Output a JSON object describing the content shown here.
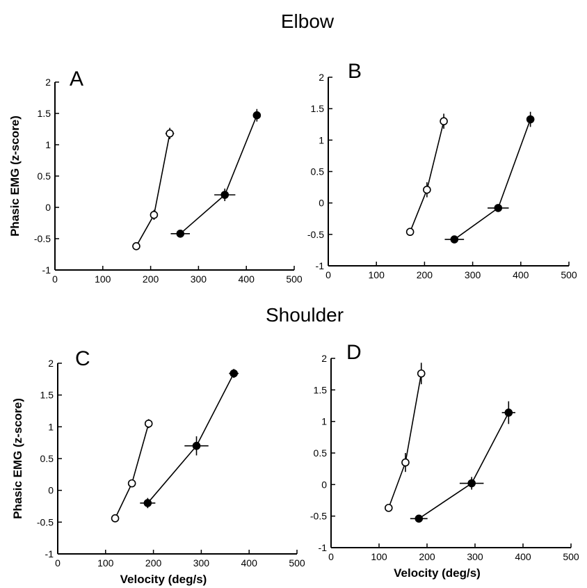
{
  "headings": {
    "top": "Elbow",
    "bottom": "Shoulder"
  },
  "axis_labels": {
    "ylabel": "Phasic EMG (z-score)",
    "xlabel": "Velocity (deg/s)"
  },
  "colors": {
    "filled": "#000000",
    "open": "#ffffff",
    "ink": "#000000"
  },
  "chart_data": [
    {
      "panel": "A",
      "type": "line",
      "xlim": [
        0,
        500
      ],
      "ylim": [
        -1,
        2
      ],
      "xticks": [
        0,
        100,
        200,
        300,
        400,
        500
      ],
      "yticks": [
        -1,
        -0.5,
        0,
        0.5,
        1,
        1.5,
        2
      ],
      "ytick_labels": [
        "-1",
        "-0.5",
        "0",
        "0.5",
        "1",
        "1.5",
        "2"
      ],
      "show_ylabel": true,
      "show_xlabel": false,
      "series": [
        {
          "marker": "open",
          "points": [
            {
              "x": 170,
              "y": -0.62,
              "xerr": 8,
              "yerr": 0.06
            },
            {
              "x": 207,
              "y": -0.12,
              "xerr": 6,
              "yerr": 0.08
            },
            {
              "x": 240,
              "y": 1.18,
              "xerr": 9,
              "yerr": 0.09
            }
          ]
        },
        {
          "marker": "filled",
          "points": [
            {
              "x": 262,
              "y": -0.42,
              "xerr": 20,
              "yerr": 0.05
            },
            {
              "x": 355,
              "y": 0.2,
              "xerr": 22,
              "yerr": 0.1
            },
            {
              "x": 422,
              "y": 1.47,
              "xerr": 8,
              "yerr": 0.1
            }
          ]
        }
      ]
    },
    {
      "panel": "B",
      "type": "line",
      "xlim": [
        0,
        500
      ],
      "ylim": [
        -1,
        2
      ],
      "xticks": [
        0,
        100,
        200,
        300,
        400,
        500
      ],
      "yticks": [
        -1,
        -0.5,
        0,
        0.5,
        1,
        1.5,
        2
      ],
      "ytick_labels": [
        "-1",
        "-0.5",
        "0",
        "0.5",
        "1",
        "1.5",
        "2"
      ],
      "show_ylabel": false,
      "show_xlabel": false,
      "series": [
        {
          "marker": "open",
          "points": [
            {
              "x": 170,
              "y": -0.46,
              "xerr": 6,
              "yerr": 0.05
            },
            {
              "x": 205,
              "y": 0.21,
              "xerr": 6,
              "yerr": 0.12
            },
            {
              "x": 240,
              "y": 1.3,
              "xerr": 7,
              "yerr": 0.12
            }
          ]
        },
        {
          "marker": "filled",
          "points": [
            {
              "x": 262,
              "y": -0.58,
              "xerr": 20,
              "yerr": 0.04
            },
            {
              "x": 353,
              "y": -0.08,
              "xerr": 22,
              "yerr": 0.06
            },
            {
              "x": 420,
              "y": 1.33,
              "xerr": 8,
              "yerr": 0.12
            }
          ]
        }
      ]
    },
    {
      "panel": "C",
      "type": "line",
      "xlim": [
        0,
        500
      ],
      "ylim": [
        -1,
        2
      ],
      "xticks": [
        0,
        100,
        200,
        300,
        400,
        500
      ],
      "yticks": [
        -1,
        -0.5,
        0,
        0.5,
        1,
        1.5,
        2
      ],
      "ytick_labels": [
        "-1",
        "-0.5",
        "0",
        "0.5",
        "1",
        "1.5",
        "2"
      ],
      "show_ylabel": true,
      "show_xlabel": true,
      "series": [
        {
          "marker": "open",
          "points": [
            {
              "x": 120,
              "y": -0.44,
              "xerr": 6,
              "yerr": 0.04
            },
            {
              "x": 155,
              "y": 0.11,
              "xerr": 6,
              "yerr": 0.06
            },
            {
              "x": 190,
              "y": 1.05,
              "xerr": 7,
              "yerr": 0.07
            }
          ]
        },
        {
          "marker": "filled",
          "points": [
            {
              "x": 188,
              "y": -0.2,
              "xerr": 16,
              "yerr": 0.08
            },
            {
              "x": 290,
              "y": 0.7,
              "xerr": 25,
              "yerr": 0.15
            },
            {
              "x": 368,
              "y": 1.84,
              "xerr": 10,
              "yerr": 0.07
            }
          ]
        }
      ]
    },
    {
      "panel": "D",
      "type": "line",
      "xlim": [
        0,
        500
      ],
      "ylim": [
        -1,
        2
      ],
      "xticks": [
        0,
        100,
        200,
        300,
        400,
        500
      ],
      "yticks": [
        -1,
        -0.5,
        0,
        0.5,
        1,
        1.5,
        2
      ],
      "ytick_labels": [
        "-1",
        "-0.5",
        "0",
        "0.5",
        "1",
        "1.5",
        "2"
      ],
      "show_ylabel": false,
      "show_xlabel": true,
      "series": [
        {
          "marker": "open",
          "points": [
            {
              "x": 120,
              "y": -0.37,
              "xerr": 5,
              "yerr": 0.04
            },
            {
              "x": 155,
              "y": 0.35,
              "xerr": 6,
              "yerr": 0.15
            },
            {
              "x": 188,
              "y": 1.76,
              "xerr": 7,
              "yerr": 0.17
            }
          ]
        },
        {
          "marker": "filled",
          "points": [
            {
              "x": 183,
              "y": -0.54,
              "xerr": 18,
              "yerr": 0.04
            },
            {
              "x": 293,
              "y": 0.02,
              "xerr": 25,
              "yerr": 0.1
            },
            {
              "x": 370,
              "y": 1.14,
              "xerr": 14,
              "yerr": 0.18
            }
          ]
        }
      ]
    }
  ]
}
